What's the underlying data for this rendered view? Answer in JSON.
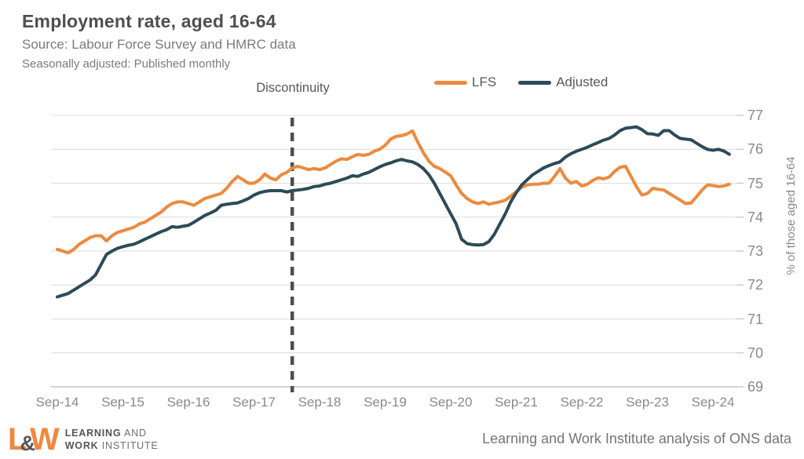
{
  "header": {
    "title": "Employment rate, aged 16-64",
    "subtitle": "Source: Labour Force Survey and HMRC data",
    "note": "Seasonally adjusted: Published monthly"
  },
  "annotations": {
    "discontinuity": "Discontinuity"
  },
  "footer": {
    "credit": "Learning and Work Institute analysis of ONS data",
    "logo": {
      "letter_l": "L",
      "ampersand": "&",
      "letter_w": "W",
      "line1_strong": "LEARNING",
      "line1_light": "AND",
      "line2_strong": "WORK",
      "line2_light": "INSTITUTE"
    }
  },
  "chart_data": {
    "type": "line",
    "title": "Employment rate, aged 16-64",
    "ylabel": "% of those aged 16-64",
    "ylim": [
      69,
      77
    ],
    "y_ticks": [
      69,
      70,
      71,
      72,
      73,
      74,
      75,
      76,
      77
    ],
    "x_tick_labels": [
      "Sep-14",
      "Sep-15",
      "Sep-16",
      "Sep-17",
      "Sep-18",
      "Sep-19",
      "Sep-20",
      "Sep-21",
      "Sep-22",
      "Sep-23",
      "Sep-24"
    ],
    "x_months_per_tick": 12,
    "x_start_month": "2014-09",
    "x_end_month": "2024-12",
    "grid": "horizontal",
    "legend_position": "top",
    "discontinuity_index": 43,
    "colors": {
      "grid": "#dcdcdc",
      "axis": "#c6c6c6",
      "tick": "#c9c9c9",
      "discontinuity_line": "#4d4d4d"
    },
    "series": [
      {
        "name": "LFS",
        "color": "#ed8a3e",
        "values": [
          73.05,
          73.0,
          72.95,
          73.05,
          73.2,
          73.3,
          73.4,
          73.45,
          73.45,
          73.3,
          73.45,
          73.55,
          73.6,
          73.65,
          73.7,
          73.8,
          73.85,
          73.95,
          74.05,
          74.15,
          74.3,
          74.4,
          74.45,
          74.45,
          74.4,
          74.35,
          74.45,
          74.55,
          74.6,
          74.65,
          74.7,
          74.85,
          75.05,
          75.2,
          75.1,
          75.0,
          75.0,
          75.1,
          75.27,
          75.15,
          75.1,
          75.25,
          75.32,
          75.45,
          75.5,
          75.45,
          75.4,
          75.43,
          75.4,
          75.45,
          75.55,
          75.65,
          75.72,
          75.7,
          75.78,
          75.85,
          75.82,
          75.85,
          75.94,
          76.0,
          76.12,
          76.3,
          76.38,
          76.4,
          76.45,
          76.54,
          76.2,
          75.9,
          75.65,
          75.5,
          75.43,
          75.33,
          75.22,
          74.95,
          74.7,
          74.55,
          74.45,
          74.4,
          74.45,
          74.38,
          74.42,
          74.45,
          74.5,
          74.62,
          74.75,
          74.88,
          74.95,
          74.97,
          74.97,
          75.0,
          75.0,
          75.2,
          75.43,
          75.15,
          75.0,
          75.05,
          74.92,
          74.97,
          75.08,
          75.16,
          75.13,
          75.18,
          75.35,
          75.47,
          75.5,
          75.2,
          74.9,
          74.65,
          74.7,
          74.85,
          74.82,
          74.8,
          74.7,
          74.6,
          74.5,
          74.4,
          74.42,
          74.6,
          74.8,
          74.95,
          74.93,
          74.9,
          74.92,
          74.97
        ]
      },
      {
        "name": "Adjusted",
        "color": "#2c4b59",
        "values": [
          71.65,
          71.7,
          71.75,
          71.85,
          71.95,
          72.05,
          72.15,
          72.3,
          72.6,
          72.9,
          73.0,
          73.08,
          73.13,
          73.17,
          73.2,
          73.27,
          73.35,
          73.42,
          73.5,
          73.57,
          73.63,
          73.72,
          73.7,
          73.73,
          73.76,
          73.85,
          73.95,
          74.05,
          74.12,
          74.2,
          74.35,
          74.38,
          74.4,
          74.42,
          74.48,
          74.55,
          74.65,
          74.72,
          74.76,
          74.78,
          74.78,
          74.78,
          74.74,
          74.78,
          74.8,
          74.82,
          74.85,
          74.9,
          74.92,
          74.97,
          75.0,
          75.05,
          75.1,
          75.15,
          75.22,
          75.2,
          75.27,
          75.32,
          75.4,
          75.48,
          75.55,
          75.6,
          75.66,
          75.7,
          75.66,
          75.63,
          75.55,
          75.43,
          75.25,
          75.0,
          74.7,
          74.4,
          74.1,
          73.8,
          73.35,
          73.22,
          73.19,
          73.18,
          73.19,
          73.28,
          73.5,
          73.8,
          74.1,
          74.45,
          74.72,
          74.95,
          75.1,
          75.25,
          75.35,
          75.45,
          75.52,
          75.58,
          75.63,
          75.77,
          75.87,
          75.94,
          76.0,
          76.06,
          76.13,
          76.2,
          76.27,
          76.32,
          76.42,
          76.55,
          76.62,
          76.64,
          76.66,
          76.58,
          76.46,
          76.45,
          76.41,
          76.55,
          76.55,
          76.42,
          76.32,
          76.3,
          76.28,
          76.18,
          76.08,
          76.0,
          75.97,
          76.0,
          75.95,
          75.85
        ]
      }
    ]
  }
}
